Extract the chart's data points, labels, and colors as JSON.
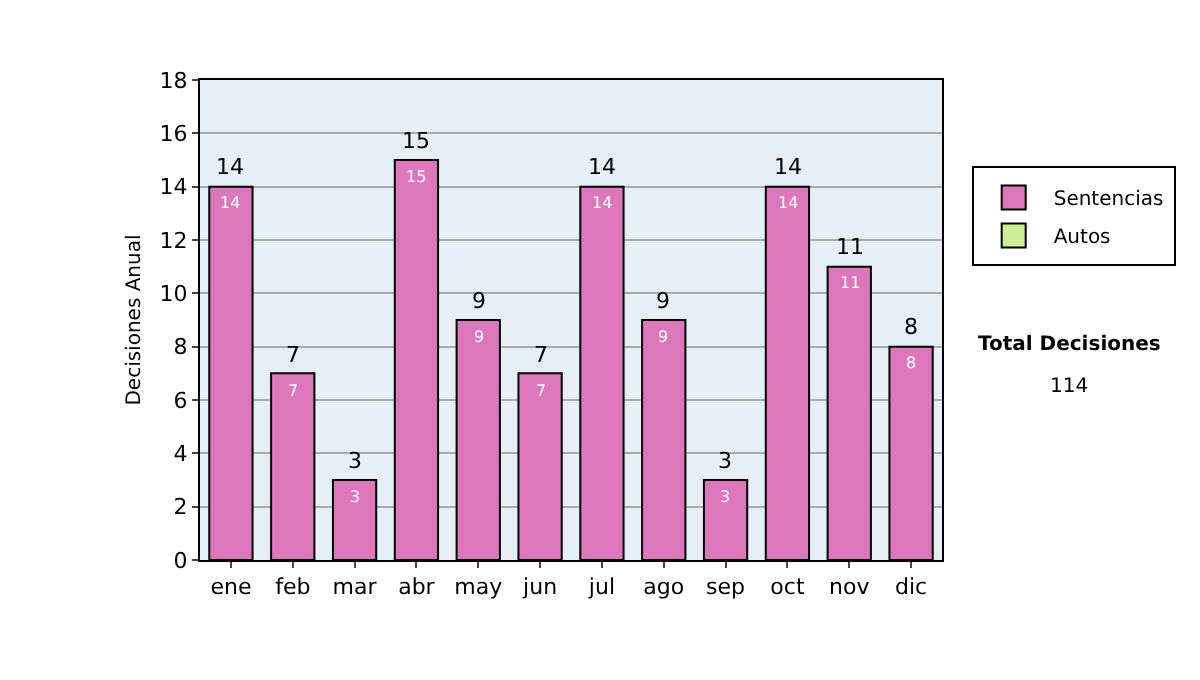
{
  "chart_data": {
    "type": "bar",
    "ylabel": "Decisiones Anual",
    "categories": [
      "ene",
      "feb",
      "mar",
      "abr",
      "may",
      "jun",
      "jul",
      "ago",
      "sep",
      "oct",
      "nov",
      "dic"
    ],
    "series": [
      {
        "name": "Sentencias",
        "color": "#dd77bb",
        "values": [
          14,
          7,
          3,
          15,
          9,
          7,
          14,
          9,
          3,
          14,
          11,
          8
        ],
        "value_labels": [
          "14",
          "7",
          "3",
          "15",
          "9",
          "7",
          "14",
          "9",
          "3",
          "14",
          "11",
          "8"
        ]
      },
      {
        "name": "Autos",
        "color": "#ccee99",
        "values": [
          null,
          null,
          null,
          null,
          null,
          null,
          null,
          null,
          null,
          null,
          null,
          null
        ]
      }
    ],
    "ylim": [
      0,
      18
    ],
    "yticks": [
      0,
      2,
      4,
      6,
      8,
      10,
      12,
      14,
      16,
      18
    ],
    "grid": "y",
    "legend": "right",
    "annotations": [
      "Total Decisiones",
      "114",
      {
        "text": "14",
        "x": "ene",
        "y": 14
      },
      {
        "text": "7",
        "x": "feb",
        "y": 7
      },
      {
        "text": "3",
        "x": "mar",
        "y": 3
      },
      {
        "text": "15",
        "x": "abr",
        "y": 15
      },
      {
        "text": "9",
        "x": "may",
        "y": 9
      },
      {
        "text": "7",
        "x": "jun",
        "y": 7
      },
      {
        "text": "14",
        "x": "jul",
        "y": 14
      },
      {
        "text": "9",
        "x": "ago",
        "y": 9
      },
      {
        "text": "3",
        "x": "sep",
        "y": 3
      },
      {
        "text": "14",
        "x": "oct",
        "y": 14
      },
      {
        "text": "11",
        "x": "nov",
        "y": 11
      },
      {
        "text": "8",
        "x": "dic",
        "y": 8
      }
    ]
  }
}
